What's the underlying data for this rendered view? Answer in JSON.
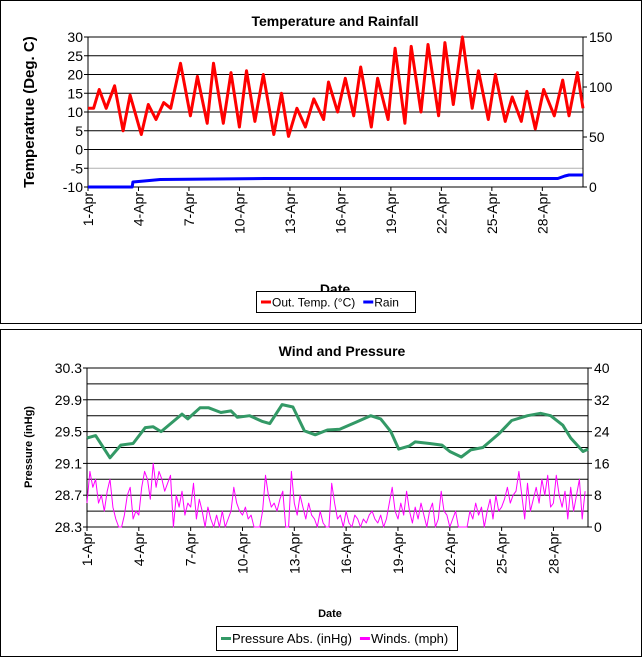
{
  "chart_data": [
    {
      "type": "line",
      "title": "Temperature and Rainfall",
      "xlabel": "Date",
      "ylabel": "Temperatrue (Deg. C)",
      "y2label": "",
      "xlim": [
        "1-Apr 00:00",
        "30-Apr 10:00"
      ],
      "ylim": [
        -10,
        30
      ],
      "y2lim": [
        0,
        150
      ],
      "yticks": [
        -10,
        -5,
        0,
        5,
        10,
        15,
        20,
        25,
        30
      ],
      "y2ticks": [
        0,
        50,
        100,
        150
      ],
      "xticks": [
        "1-Apr",
        "4-Apr",
        "7-Apr",
        "10-Apr",
        "13-Apr",
        "16-Apr",
        "19-Apr",
        "22-Apr",
        "25-Apr",
        "28-Apr"
      ],
      "grid": true,
      "legend_position": "bottom",
      "series": [
        {
          "name": "Out. Temp. (°C)",
          "axis": "left",
          "color": "#ff0000",
          "points": [
            [
              "1-Apr 00:00",
              11
            ],
            [
              "1-Apr 08:00",
              11
            ],
            [
              "1-Apr 16:00",
              16
            ],
            [
              "2-Apr 02:00",
              11
            ],
            [
              "2-Apr 14:00",
              17
            ],
            [
              "3-Apr 02:00",
              5
            ],
            [
              "3-Apr 12:00",
              14.5
            ],
            [
              "4-Apr 04:00",
              4
            ],
            [
              "4-Apr 14:00",
              12
            ],
            [
              "5-Apr 01:00",
              8
            ],
            [
              "5-Apr 12:00",
              12.5
            ],
            [
              "5-Apr 22:00",
              11
            ],
            [
              "6-Apr 12:00",
              23
            ],
            [
              "7-Apr 02:00",
              9
            ],
            [
              "7-Apr 12:00",
              19.5
            ],
            [
              "8-Apr 02:00",
              7
            ],
            [
              "8-Apr 11:00",
              23
            ],
            [
              "9-Apr 01:00",
              7
            ],
            [
              "9-Apr 12:00",
              20.5
            ],
            [
              "10-Apr 00:00",
              6
            ],
            [
              "10-Apr 10:00",
              21
            ],
            [
              "10-Apr 22:00",
              7.5
            ],
            [
              "11-Apr 10:00",
              20
            ],
            [
              "12-Apr 01:00",
              4
            ],
            [
              "12-Apr 12:00",
              15
            ],
            [
              "12-Apr 22:00",
              3.5
            ],
            [
              "13-Apr 10:00",
              11
            ],
            [
              "13-Apr 22:00",
              6
            ],
            [
              "14-Apr 10:00",
              13.5
            ],
            [
              "15-Apr 00:00",
              8
            ],
            [
              "15-Apr 07:00",
              18
            ],
            [
              "15-Apr 20:00",
              10
            ],
            [
              "16-Apr 07:00",
              19
            ],
            [
              "16-Apr 19:00",
              9
            ],
            [
              "17-Apr 05:00",
              22
            ],
            [
              "17-Apr 20:00",
              6
            ],
            [
              "18-Apr 05:00",
              19
            ],
            [
              "18-Apr 20:00",
              8
            ],
            [
              "19-Apr 06:00",
              27
            ],
            [
              "19-Apr 20:00",
              7
            ],
            [
              "20-Apr 05:00",
              27.5
            ],
            [
              "20-Apr 19:00",
              10
            ],
            [
              "21-Apr 05:00",
              28
            ],
            [
              "21-Apr 20:00",
              9
            ],
            [
              "22-Apr 05:00",
              28.5
            ],
            [
              "22-Apr 17:00",
              12
            ],
            [
              "23-Apr 06:00",
              30
            ],
            [
              "23-Apr 20:00",
              11
            ],
            [
              "24-Apr 05:00",
              21
            ],
            [
              "24-Apr 19:00",
              8
            ],
            [
              "25-Apr 05:00",
              20
            ],
            [
              "25-Apr 19:00",
              7.5
            ],
            [
              "26-Apr 05:00",
              14
            ],
            [
              "26-Apr 18:00",
              7.5
            ],
            [
              "27-Apr 02:00",
              15.5
            ],
            [
              "27-Apr 14:00",
              5.5
            ],
            [
              "28-Apr 02:00",
              16
            ],
            [
              "28-Apr 17:00",
              9
            ],
            [
              "29-Apr 05:00",
              18.5
            ],
            [
              "29-Apr 14:00",
              9
            ],
            [
              "30-Apr 02:00",
              20.5
            ],
            [
              "30-Apr 10:00",
              11
            ]
          ]
        },
        {
          "name": "Rain",
          "axis": "right",
          "color": "#0000ff",
          "points": [
            [
              "1-Apr 00:00",
              0
            ],
            [
              "3-Apr 15:00",
              0
            ],
            [
              "3-Apr 16:00",
              5
            ],
            [
              "4-Apr 08:00",
              6
            ],
            [
              "5-Apr 07:00",
              7.5
            ],
            [
              "11-Apr 12:00",
              8.5
            ],
            [
              "28-Apr 22:00",
              8.5
            ],
            [
              "29-Apr 08:00",
              11
            ],
            [
              "29-Apr 14:00",
              12
            ],
            [
              "30-Apr 10:00",
              12
            ]
          ]
        }
      ]
    },
    {
      "type": "line",
      "title": "Wind and Pressure",
      "xlabel": "Date",
      "ylabel": "Pressure (inHg)",
      "xlim": [
        "1-Apr 00:00",
        "30-Apr 00:00"
      ],
      "ylim": [
        28.3,
        30.3
      ],
      "y2lim": [
        0,
        40
      ],
      "yticks": [
        28.3,
        28.7,
        29.1,
        29.5,
        29.9,
        30.3
      ],
      "y2ticks": [
        0,
        8,
        16,
        24,
        32,
        40
      ],
      "xticks": [
        "1-Apr",
        "4-Apr",
        "7-Apr",
        "10-Apr",
        "13-Apr",
        "16-Apr",
        "19-Apr",
        "22-Apr",
        "25-Apr",
        "28-Apr"
      ],
      "grid": true,
      "legend_position": "bottom",
      "series": [
        {
          "name": "Pressure Abs. (inHg)",
          "axis": "left",
          "color": "#339966",
          "points": [
            [
              "1-Apr 00:00",
              29.42
            ],
            [
              "1-Apr 12:00",
              29.45
            ],
            [
              "2-Apr 08:00",
              29.17
            ],
            [
              "2-Apr 23:00",
              29.33
            ],
            [
              "3-Apr 16:00",
              29.35
            ],
            [
              "4-Apr 09:00",
              29.55
            ],
            [
              "4-Apr 20:00",
              29.56
            ],
            [
              "5-Apr 07:00",
              29.5
            ],
            [
              "6-Apr 12:00",
              29.72
            ],
            [
              "6-Apr 20:00",
              29.66
            ],
            [
              "7-Apr 13:00",
              29.8
            ],
            [
              "8-Apr 01:00",
              29.8
            ],
            [
              "8-Apr 18:00",
              29.74
            ],
            [
              "9-Apr 08:00",
              29.76
            ],
            [
              "9-Apr 17:00",
              29.68
            ],
            [
              "10-Apr 10:00",
              29.7
            ],
            [
              "11-Apr 03:00",
              29.63
            ],
            [
              "11-Apr 14:00",
              29.6
            ],
            [
              "12-Apr 07:00",
              29.84
            ],
            [
              "12-Apr 22:00",
              29.81
            ],
            [
              "13-Apr 14:00",
              29.51
            ],
            [
              "14-Apr 05:00",
              29.46
            ],
            [
              "14-Apr 22:00",
              29.52
            ],
            [
              "15-Apr 15:00",
              29.53
            ],
            [
              "16-Apr 14:00",
              29.62
            ],
            [
              "17-Apr 10:00",
              29.7
            ],
            [
              "18-Apr 00:00",
              29.66
            ],
            [
              "18-Apr 14:00",
              29.5
            ],
            [
              "19-Apr 01:00",
              29.28
            ],
            [
              "19-Apr 16:00",
              29.32
            ],
            [
              "20-Apr 00:00",
              29.37
            ],
            [
              "20-Apr 20:00",
              29.35
            ],
            [
              "21-Apr 13:00",
              29.33
            ],
            [
              "22-Apr 00:00",
              29.25
            ],
            [
              "22-Apr 16:00",
              29.18
            ],
            [
              "23-Apr 05:00",
              29.27
            ],
            [
              "23-Apr 22:00",
              29.3
            ],
            [
              "24-Apr 21:00",
              29.48
            ],
            [
              "25-Apr 14:00",
              29.64
            ],
            [
              "26-Apr 12:00",
              29.7
            ],
            [
              "27-Apr 06:00",
              29.73
            ],
            [
              "27-Apr 20:00",
              29.7
            ],
            [
              "28-Apr 13:00",
              29.58
            ],
            [
              "29-Apr 00:00",
              29.42
            ],
            [
              "29-Apr 17:00",
              29.25
            ],
            [
              "30-Apr 00:00",
              29.28
            ]
          ]
        },
        {
          "name": "Winds. (mph)",
          "axis": "right",
          "color": "#ff00ff",
          "reading_hours": [
            0,
            4,
            8,
            12,
            16,
            20
          ],
          "daily": {
            "1-Apr": [
              6,
              14,
              10,
              12,
              6,
              8
            ],
            "2-Apr": [
              4,
              9,
              12,
              5,
              2,
              0
            ],
            "3-Apr": [
              0,
              3,
              8,
              10,
              2,
              4
            ],
            "4-Apr": [
              3,
              10,
              14,
              12,
              7,
              16
            ],
            "5-Apr": [
              10,
              14,
              12,
              9,
              11,
              13
            ],
            "6-Apr": [
              0,
              8,
              5,
              9,
              3,
              6
            ],
            "7-Apr": [
              5,
              11,
              2,
              7,
              4,
              0
            ],
            "8-Apr": [
              5,
              2,
              0,
              3,
              0,
              4
            ],
            "9-Apr": [
              0,
              2,
              4,
              10,
              6,
              4
            ],
            "10-Apr": [
              3,
              5,
              2,
              3,
              0,
              0
            ],
            "11-Apr": [
              0,
              4,
              13,
              8,
              5,
              6
            ],
            "12-Apr": [
              4,
              7,
              9,
              0,
              0,
              14
            ],
            "13-Apr": [
              6,
              3,
              8,
              5,
              2,
              6
            ],
            "14-Apr": [
              3,
              2,
              0,
              4,
              1,
              0
            ],
            "15-Apr": [
              0,
              11,
              6,
              2,
              3,
              0
            ],
            "16-Apr": [
              4,
              1,
              0,
              3,
              2,
              0
            ],
            "17-Apr": [
              2,
              1,
              3,
              4,
              2,
              1
            ],
            "18-Apr": [
              3,
              0,
              2,
              6,
              10,
              4
            ],
            "19-Apr": [
              2,
              6,
              3,
              9,
              4,
              1
            ],
            "20-Apr": [
              5,
              2,
              6,
              3,
              0,
              4
            ],
            "21-Apr": [
              6,
              0,
              2,
              9,
              4,
              3
            ],
            "22-Apr": [
              0,
              2,
              4,
              0,
              0,
              0
            ],
            "23-Apr": [
              0,
              4,
              2,
              6,
              3,
              5
            ],
            "24-Apr": [
              0,
              4,
              7,
              2,
              8,
              4
            ],
            "25-Apr": [
              5,
              7,
              10,
              6,
              8,
              9
            ],
            "26-Apr": [
              14,
              8,
              2,
              11,
              4,
              7
            ],
            "27-Apr": [
              10,
              6,
              12,
              8,
              13,
              5
            ],
            "28-Apr": [
              6,
              13,
              8,
              5,
              9,
              2
            ],
            "29-Apr": [
              10,
              4,
              8,
              12,
              2,
              9
            ]
          }
        }
      ]
    }
  ]
}
